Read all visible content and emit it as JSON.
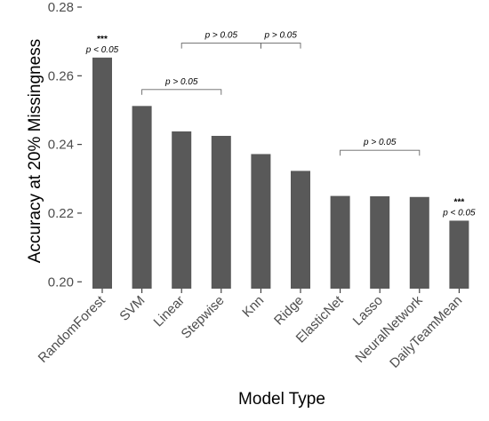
{
  "chart_data": {
    "type": "bar",
    "categories": [
      "RandomForest",
      "SVM",
      "Linear",
      "Stepwise",
      "Knn",
      "Ridge",
      "ElasticNet",
      "Lasso",
      "NeuralNetwork",
      "DailyTeamMean"
    ],
    "values": [
      0.2653,
      0.2512,
      0.2438,
      0.2425,
      0.2372,
      0.2323,
      0.225,
      0.2249,
      0.2247,
      0.2178
    ],
    "xlabel": "Model Type",
    "ylabel": "Accuracy at 20% Missingness",
    "ylim": [
      0.198,
      0.28
    ],
    "yticks": [
      "0.20",
      "0.22",
      "0.24",
      "0.26",
      "0.28"
    ],
    "ytick_values": [
      0.2,
      0.22,
      0.24,
      0.26,
      0.28
    ],
    "bar_color": "#595959",
    "grid": false,
    "annotations": {
      "significance": [
        {
          "category": "RandomForest",
          "stars": "***",
          "text": "p < 0.05"
        },
        {
          "category": "DailyTeamMean",
          "stars": "***",
          "text": "p < 0.05"
        }
      ],
      "brackets": [
        {
          "from": "SVM",
          "to": "Stepwise",
          "text": "p > 0.05",
          "y": 0.256
        },
        {
          "from": "Linear",
          "to": "Knn",
          "text": "p > 0.05",
          "y": 0.2695
        },
        {
          "from": "Knn",
          "to": "Ridge",
          "text": "p > 0.05",
          "y": 0.2695
        },
        {
          "from": "ElasticNet",
          "to": "NeuralNetwork",
          "text": "p > 0.05",
          "y": 0.2383
        }
      ]
    }
  }
}
